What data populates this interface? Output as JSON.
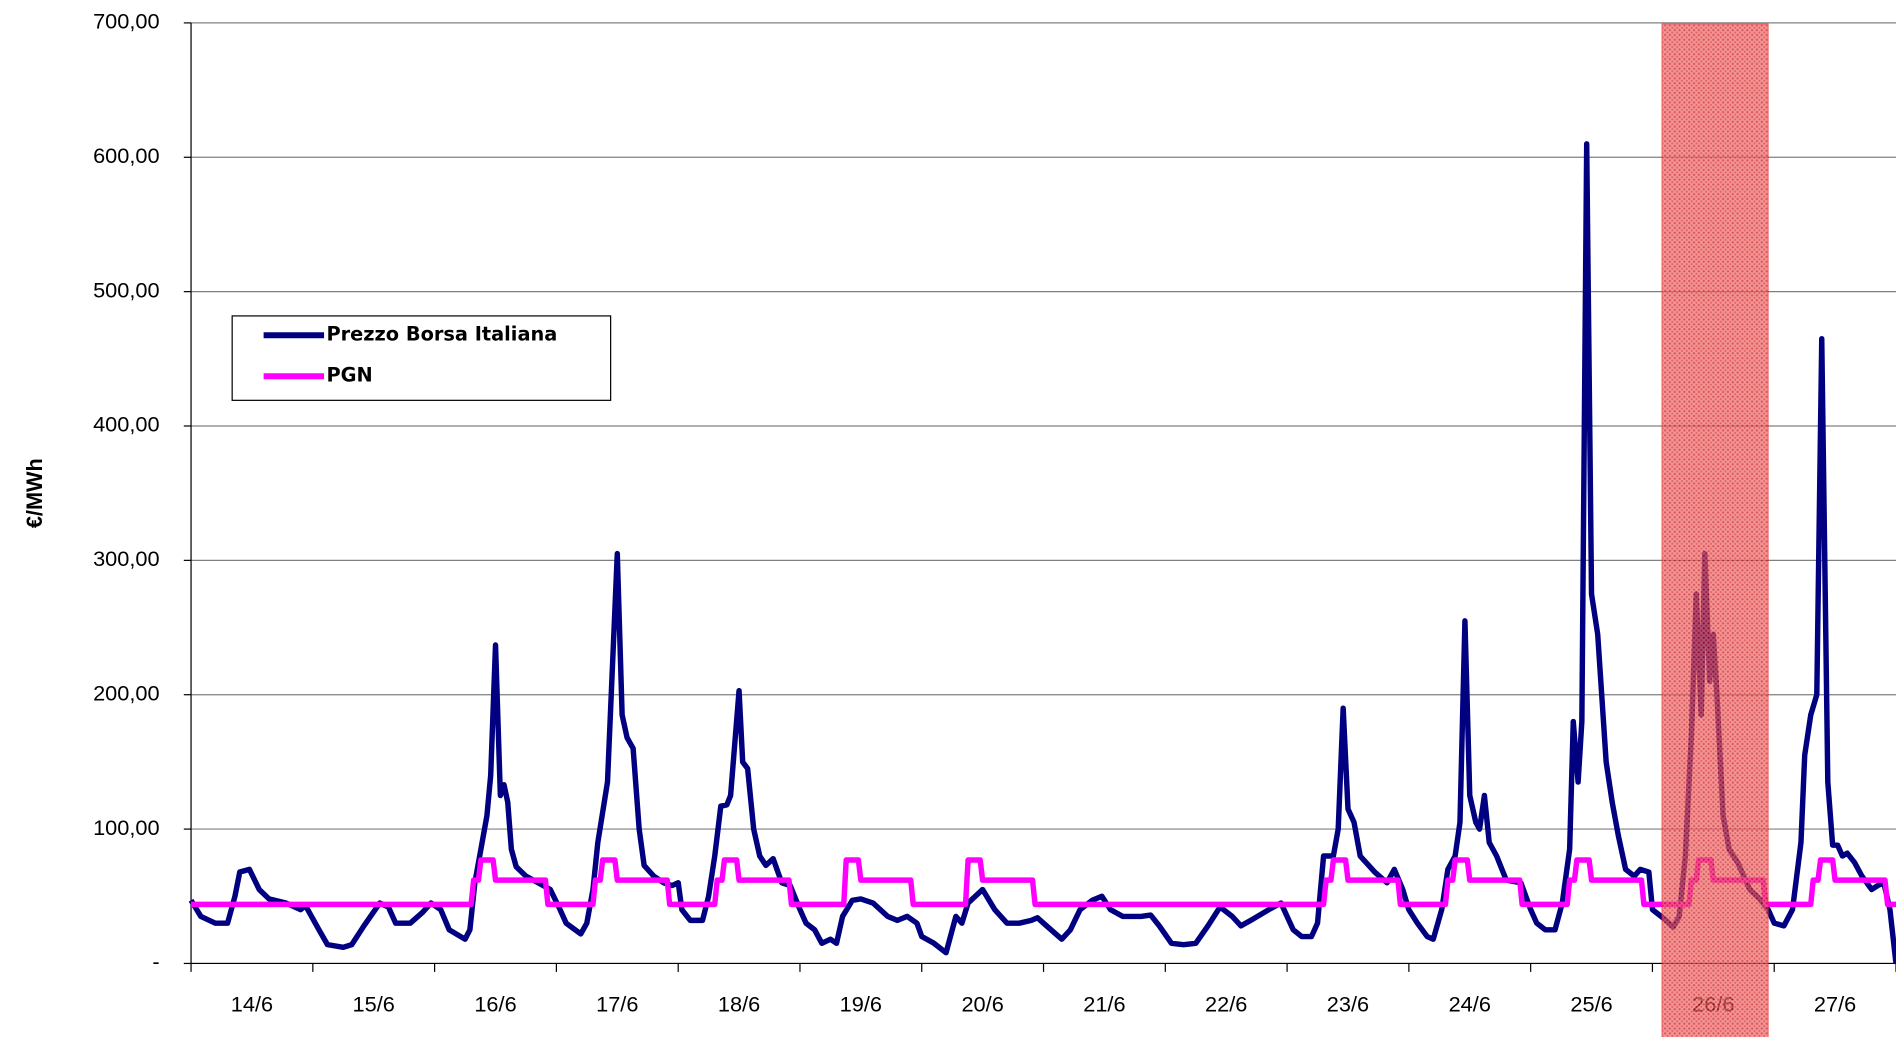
{
  "chart_data": {
    "type": "line",
    "y_label": "€/MWh",
    "categories": [
      "14/6",
      "15/6",
      "16/6",
      "17/6",
      "18/6",
      "19/6",
      "20/6",
      "21/6",
      "22/6",
      "23/6",
      "24/6",
      "25/6",
      "26/6",
      "27/6"
    ],
    "xlim": [
      0,
      14
    ],
    "xticks": [
      0,
      1,
      2,
      3,
      4,
      5,
      6,
      7,
      8,
      9,
      10,
      11,
      12,
      13,
      14
    ],
    "ylim": [
      0,
      700
    ],
    "yticks": [
      {
        "value": 0,
        "label": "-"
      },
      {
        "value": 100,
        "label": "100,00"
      },
      {
        "value": 200,
        "label": "200,00"
      },
      {
        "value": 300,
        "label": "300,00"
      },
      {
        "value": 400,
        "label": "400,00"
      },
      {
        "value": 500,
        "label": "500,00"
      },
      {
        "value": 600,
        "label": "600,00"
      },
      {
        "value": 700,
        "label": "700,00"
      }
    ],
    "grid": true,
    "legend": "upper-left",
    "highlight_category_index": 12,
    "highlight_color": "#e8302f",
    "series": [
      {
        "name": "Prezzo Borsa Italiana",
        "color": "#000080",
        "x": [
          0,
          0.08,
          0.2,
          0.3,
          0.36,
          0.4,
          0.48,
          0.56,
          0.64,
          0.78,
          0.9,
          0.94,
          1.05,
          1.12,
          1.25,
          1.32,
          1.42,
          1.55,
          1.62,
          1.68,
          1.8,
          1.9,
          1.97,
          2.05,
          2.12,
          2.25,
          2.29,
          2.33,
          2.37,
          2.43,
          2.46,
          2.5,
          2.54,
          2.57,
          2.6,
          2.63,
          2.67,
          2.75,
          2.85,
          2.95,
          3.02,
          3.08,
          3.2,
          3.25,
          3.3,
          3.34,
          3.42,
          3.5,
          3.54,
          3.58,
          3.63,
          3.68,
          3.72,
          3.8,
          3.88,
          3.95,
          4.0,
          4.03,
          4.1,
          4.2,
          4.25,
          4.3,
          4.35,
          4.4,
          4.43,
          4.5,
          4.53,
          4.57,
          4.62,
          4.67,
          4.72,
          4.78,
          4.85,
          4.92,
          5.0,
          5.05,
          5.12,
          5.18,
          5.25,
          5.3,
          5.35,
          5.43,
          5.5,
          5.6,
          5.72,
          5.8,
          5.88,
          5.96,
          6.0,
          6.1,
          6.2,
          6.28,
          6.33,
          6.38,
          6.5,
          6.6,
          6.7,
          6.8,
          6.9,
          6.95,
          7.0,
          7.1,
          7.15,
          7.22,
          7.3,
          7.4,
          7.48,
          7.55,
          7.65,
          7.8,
          7.88,
          7.95,
          8.05,
          8.15,
          8.25,
          8.35,
          8.45,
          8.55,
          8.62,
          8.72,
          8.85,
          8.95,
          9.0,
          9.05,
          9.12,
          9.2,
          9.25,
          9.3,
          9.38,
          9.42,
          9.46,
          9.5,
          9.55,
          9.6,
          9.72,
          9.82,
          9.88,
          9.95,
          10.0,
          10.07,
          10.15,
          10.2,
          10.27,
          10.32,
          10.38,
          10.42,
          10.46,
          10.5,
          10.55,
          10.58,
          10.62,
          10.66,
          10.72,
          10.8,
          10.92,
          11.0,
          11.05,
          11.12,
          11.2,
          11.26,
          11.32,
          11.35,
          11.39,
          11.42,
          11.46,
          11.5,
          11.55,
          11.62,
          11.67,
          11.72,
          11.78,
          11.85,
          11.9,
          11.97,
          12.0,
          12.1,
          12.17,
          12.22,
          12.27,
          12.32,
          12.36,
          12.4,
          12.43,
          12.47,
          12.5,
          12.53,
          12.58,
          12.63,
          12.7,
          12.8,
          12.88,
          12.95,
          13.0,
          13.08,
          13.15,
          13.22,
          13.25,
          13.3,
          13.35,
          13.39,
          13.44,
          13.48,
          13.52,
          13.56,
          13.6,
          13.66,
          13.72,
          13.8,
          13.85,
          13.9,
          13.95,
          14.0
        ],
        "values": [
          47,
          35,
          30,
          30,
          50,
          68,
          70,
          55,
          48,
          45,
          40,
          43,
          25,
          14,
          12,
          14,
          28,
          45,
          42,
          30,
          30,
          38,
          45,
          40,
          25,
          18,
          25,
          60,
          80,
          110,
          140,
          237,
          125,
          133,
          120,
          85,
          72,
          65,
          60,
          55,
          42,
          30,
          22,
          30,
          55,
          90,
          135,
          305,
          185,
          168,
          160,
          100,
          73,
          65,
          60,
          58,
          60,
          40,
          32,
          32,
          50,
          80,
          117,
          118,
          125,
          203,
          150,
          145,
          100,
          80,
          73,
          78,
          60,
          58,
          40,
          30,
          25,
          15,
          18,
          15,
          35,
          47,
          48,
          45,
          35,
          32,
          35,
          30,
          20,
          15,
          8,
          35,
          30,
          45,
          55,
          40,
          30,
          30,
          32,
          34,
          30,
          22,
          18,
          25,
          40,
          47,
          50,
          40,
          35,
          35,
          36,
          28,
          15,
          14,
          15,
          28,
          42,
          35,
          28,
          33,
          40,
          45,
          35,
          25,
          20,
          20,
          30,
          80,
          80,
          100,
          190,
          115,
          105,
          80,
          68,
          60,
          70,
          55,
          40,
          30,
          20,
          18,
          40,
          70,
          80,
          105,
          255,
          125,
          105,
          100,
          125,
          90,
          80,
          62,
          60,
          40,
          30,
          25,
          25,
          45,
          85,
          180,
          135,
          180,
          610,
          275,
          245,
          150,
          120,
          95,
          70,
          65,
          70,
          68,
          40,
          33,
          27,
          35,
          80,
          170,
          275,
          185,
          305,
          210,
          245,
          200,
          110,
          85,
          75,
          55,
          48,
          40,
          30,
          28,
          40,
          90,
          155,
          185,
          200,
          465,
          135,
          88,
          88,
          80,
          82,
          75,
          65,
          55,
          58,
          60,
          40,
          0
        ]
      },
      {
        "name": "PGN",
        "color": "#ff00ff",
        "x": [
          0,
          2.3,
          2.32,
          2.36,
          2.38,
          2.48,
          2.5,
          2.91,
          2.93,
          3.3,
          3.32,
          3.36,
          3.38,
          3.48,
          3.5,
          3.91,
          3.93,
          4.3,
          4.32,
          4.36,
          4.38,
          4.48,
          4.5,
          4.91,
          4.93,
          5.36,
          5.38,
          5.48,
          5.5,
          5.91,
          5.93,
          6.36,
          6.38,
          6.48,
          6.5,
          6.91,
          6.93,
          9.3,
          9.32,
          9.36,
          9.38,
          9.48,
          9.5,
          9.91,
          9.93,
          10.3,
          10.32,
          10.36,
          10.38,
          10.48,
          10.5,
          10.91,
          10.93,
          11.3,
          11.32,
          11.36,
          11.38,
          11.48,
          11.5,
          11.91,
          11.93,
          12.3,
          12.32,
          12.36,
          12.38,
          12.48,
          12.5,
          12.91,
          12.93,
          13.3,
          13.32,
          13.36,
          13.38,
          13.48,
          13.5,
          13.91,
          13.93,
          14.0
        ],
        "values": [
          44,
          44,
          62,
          62,
          77,
          77,
          62,
          62,
          44,
          44,
          62,
          62,
          77,
          77,
          62,
          62,
          44,
          44,
          62,
          62,
          77,
          77,
          62,
          62,
          44,
          44,
          77,
          77,
          62,
          62,
          44,
          44,
          77,
          77,
          62,
          62,
          44,
          44,
          62,
          62,
          77,
          77,
          62,
          62,
          44,
          44,
          62,
          62,
          77,
          77,
          62,
          62,
          44,
          44,
          62,
          62,
          77,
          77,
          62,
          62,
          44,
          44,
          62,
          62,
          77,
          77,
          62,
          62,
          44,
          44,
          62,
          62,
          77,
          77,
          62,
          62,
          44,
          44
        ]
      }
    ]
  }
}
